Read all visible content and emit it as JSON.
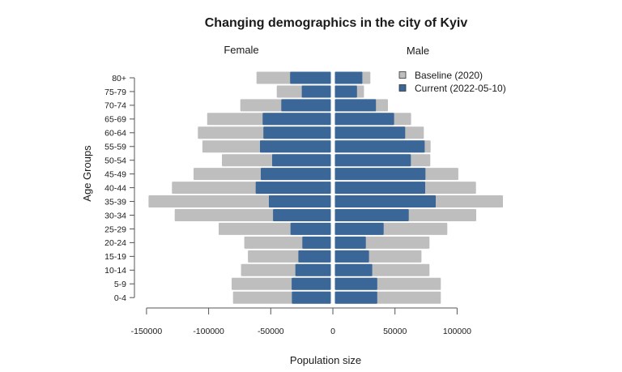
{
  "chart_data": {
    "type": "bar",
    "orientation": "horizontal",
    "subtype": "population-pyramid",
    "title": "Changing demographics in the city of Kyiv",
    "left_label": "Female",
    "right_label": "Male",
    "xlabel": "Population size",
    "ylabel": "Age Groups",
    "xlim": [
      -150000,
      100000
    ],
    "xticks": [
      -150000,
      -100000,
      -50000,
      0,
      50000,
      100000
    ],
    "xtick_labels": [
      "-150000",
      "-100000",
      "-50000",
      "0",
      "50000",
      "100000"
    ],
    "grid": false,
    "legend": {
      "position": "top-right",
      "entries": [
        {
          "label": "Baseline (2020)",
          "color": "#bebebe"
        },
        {
          "label": "Current (2022-05-10)",
          "color": "#3a6797"
        }
      ]
    },
    "categories": [
      "80+",
      "75-79",
      "70-74",
      "65-69",
      "60-64",
      "55-59",
      "50-54",
      "45-49",
      "40-44",
      "35-39",
      "30-34",
      "25-29",
      "20-24",
      "15-19",
      "10-14",
      "5-9",
      "0-4"
    ],
    "series": [
      {
        "name": "Baseline (2020) - Female",
        "color": "#bebebe",
        "side": "left",
        "values": [
          61500,
          45200,
          74500,
          101200,
          108700,
          105000,
          89300,
          112100,
          129500,
          148400,
          127300,
          91900,
          71300,
          68400,
          73900,
          81500,
          80400
        ]
      },
      {
        "name": "Current (2022-05-10) - Female",
        "color": "#3a6797",
        "side": "left",
        "values": [
          34400,
          25000,
          41500,
          56500,
          55900,
          58700,
          48900,
          58000,
          62100,
          51500,
          48200,
          34100,
          24600,
          27800,
          30200,
          33200,
          33000
        ]
      },
      {
        "name": "Baseline (2020) - Male",
        "color": "#bebebe",
        "side": "right",
        "values": [
          30200,
          25000,
          44300,
          63000,
          73200,
          78700,
          78400,
          101000,
          115200,
          136900,
          115400,
          92100,
          77800,
          71300,
          77800,
          86900,
          86900
        ]
      },
      {
        "name": "Current (2022-05-10) - Male",
        "color": "#3a6797",
        "side": "right",
        "values": [
          23700,
          19400,
          34700,
          49300,
          58200,
          73900,
          62800,
          74500,
          74300,
          82800,
          61100,
          40900,
          26500,
          29100,
          31700,
          35700,
          35700
        ]
      }
    ]
  }
}
